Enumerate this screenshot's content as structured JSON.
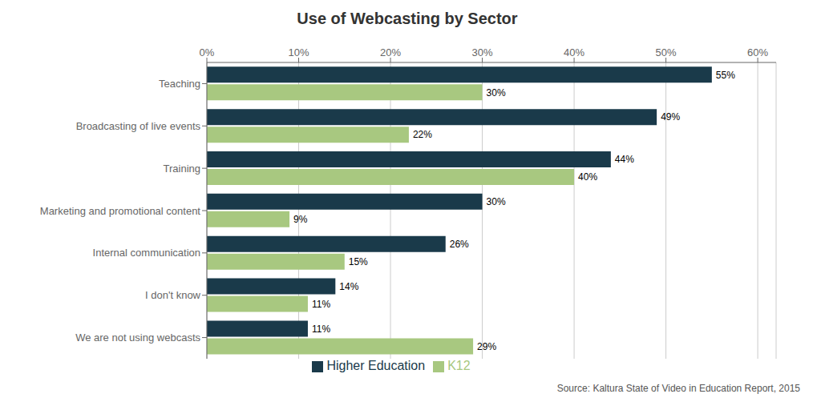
{
  "chart_data": {
    "type": "bar",
    "orientation": "horizontal",
    "title": "Use of Webcasting by Sector",
    "categories": [
      "Teaching",
      "Broadcasting of live events",
      "Training",
      "Marketing and promotional content",
      "Internal communication",
      "I don't know",
      "We are not using webcasts"
    ],
    "series": [
      {
        "name": "Higher Education",
        "color": "#1a3a4a",
        "values": [
          55,
          49,
          44,
          30,
          26,
          14,
          11
        ],
        "value_labels": [
          "55%",
          "49%",
          "44%",
          "30%",
          "26%",
          "14%",
          "11%"
        ]
      },
      {
        "name": "K12",
        "color": "#a8c880",
        "values": [
          30,
          22,
          40,
          9,
          15,
          11,
          29
        ],
        "value_labels": [
          "30%",
          "22%",
          "40%",
          "9%",
          "15%",
          "11%",
          "29%"
        ]
      }
    ],
    "xlim": [
      0,
      62
    ],
    "xticks": [
      {
        "value": 0,
        "label": "0%"
      },
      {
        "value": 10,
        "label": "10%"
      },
      {
        "value": 20,
        "label": "20%"
      },
      {
        "value": 30,
        "label": "30%"
      },
      {
        "value": 40,
        "label": "40%"
      },
      {
        "value": 50,
        "label": "50%"
      },
      {
        "value": 60,
        "label": "60%"
      }
    ],
    "grid": true,
    "legend": "bottom",
    "data_labels": true,
    "annotations": [
      "Source: Kaltura State of Video in Education Report, 2015"
    ]
  }
}
